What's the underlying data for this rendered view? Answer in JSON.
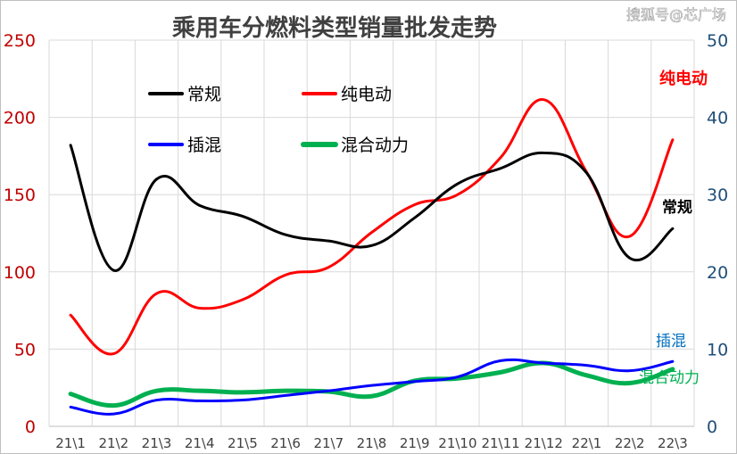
{
  "watermark": "搜狐号@芯广场",
  "chart_data": {
    "type": "line",
    "title": "乘用车分燃料类型销量批发走势",
    "categories": [
      "21\\1",
      "21\\2",
      "21\\3",
      "21\\4",
      "21\\5",
      "21\\6",
      "21\\7",
      "21\\8",
      "21\\9",
      "21\\10",
      "21\\11",
      "21\\12",
      "22\\1",
      "22\\2",
      "22\\3"
    ],
    "y_left": {
      "min": 0,
      "max": 250,
      "ticks": [
        0,
        50,
        100,
        150,
        200,
        250
      ],
      "color": "#c00000"
    },
    "y_right": {
      "min": 0,
      "max": 50,
      "ticks": [
        0,
        10,
        20,
        30,
        40,
        50
      ],
      "color": "#1f4e79"
    },
    "grid": true,
    "legend_position": "top-left (inside plot)",
    "series": [
      {
        "name": "常规",
        "axis": "left",
        "color": "#000000",
        "width": 3,
        "values": [
          182,
          101,
          160,
          143,
          136,
          124,
          120,
          117,
          135,
          157,
          167,
          177,
          164,
          109,
          128
        ]
      },
      {
        "name": "纯电动",
        "axis": "right",
        "color": "#ff0000",
        "width": 3,
        "values": [
          14.4,
          9.4,
          17.2,
          15.3,
          16.4,
          19.6,
          20.6,
          25.1,
          28.7,
          30.0,
          34.8,
          42.3,
          32.9,
          24.6,
          37.1
        ]
      },
      {
        "name": "插混",
        "axis": "right",
        "color": "#0000ff",
        "width": 3,
        "values": [
          2.5,
          1.6,
          3.4,
          3.3,
          3.4,
          4.0,
          4.6,
          5.3,
          5.8,
          6.4,
          8.5,
          8.2,
          7.9,
          7.2,
          8.4
        ]
      },
      {
        "name": "混合动力",
        "axis": "right",
        "color": "#00b050",
        "width": 5,
        "values": [
          4.2,
          2.7,
          4.6,
          4.6,
          4.4,
          4.6,
          4.5,
          3.9,
          5.9,
          6.2,
          7.0,
          8.2,
          6.6,
          5.6,
          7.4
        ]
      }
    ],
    "end_labels": [
      {
        "text": "纯电动",
        "color": "#ff0000"
      },
      {
        "text": "常规",
        "color": "#000000"
      },
      {
        "text": "插混",
        "color": "#0070c0"
      },
      {
        "text": "混合动力",
        "color": "#00b050"
      }
    ]
  }
}
